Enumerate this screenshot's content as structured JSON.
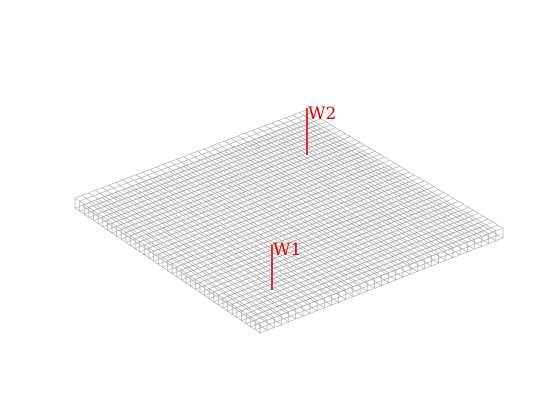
{
  "diagram": {
    "mesh": {
      "divisions_u": 40,
      "divisions_v": 34,
      "layers": 2,
      "line_color": "#a6a6a6",
      "background_color": "#ffffff"
    },
    "markers": [
      {
        "id": "w1",
        "label": "W1",
        "color": "#e00000"
      },
      {
        "id": "w2",
        "label": "W2",
        "color": "#e00000"
      }
    ]
  }
}
